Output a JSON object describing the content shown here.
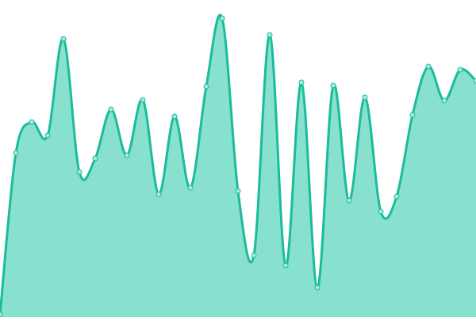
{
  "chart_data": {
    "type": "area",
    "title": "",
    "xlabel": "",
    "ylabel": "",
    "x": [
      0,
      1,
      2,
      3,
      4,
      5,
      6,
      7,
      8,
      9,
      10,
      11,
      12,
      13,
      14,
      15,
      16,
      17,
      18,
      19,
      20,
      21,
      22,
      23,
      24,
      25,
      26,
      27,
      28,
      29,
      30
    ],
    "series": [
      {
        "values": [
          3,
          207,
          246,
          229,
          351,
          183,
          200,
          262,
          204,
          274,
          155,
          253,
          163,
          291,
          377,
          159,
          78,
          356,
          65,
          296,
          37,
          292,
          147,
          277,
          133,
          152,
          255,
          316,
          273,
          312,
          298
        ]
      }
    ],
    "xlim": [
      0,
      30
    ],
    "ylim": [
      0,
      400
    ],
    "grid": false,
    "axes_visible": false,
    "curve": "smooth",
    "colors": {
      "line": "#1abc9c",
      "fill": "#88e0cf",
      "point_fill": "#a8ead9"
    }
  }
}
